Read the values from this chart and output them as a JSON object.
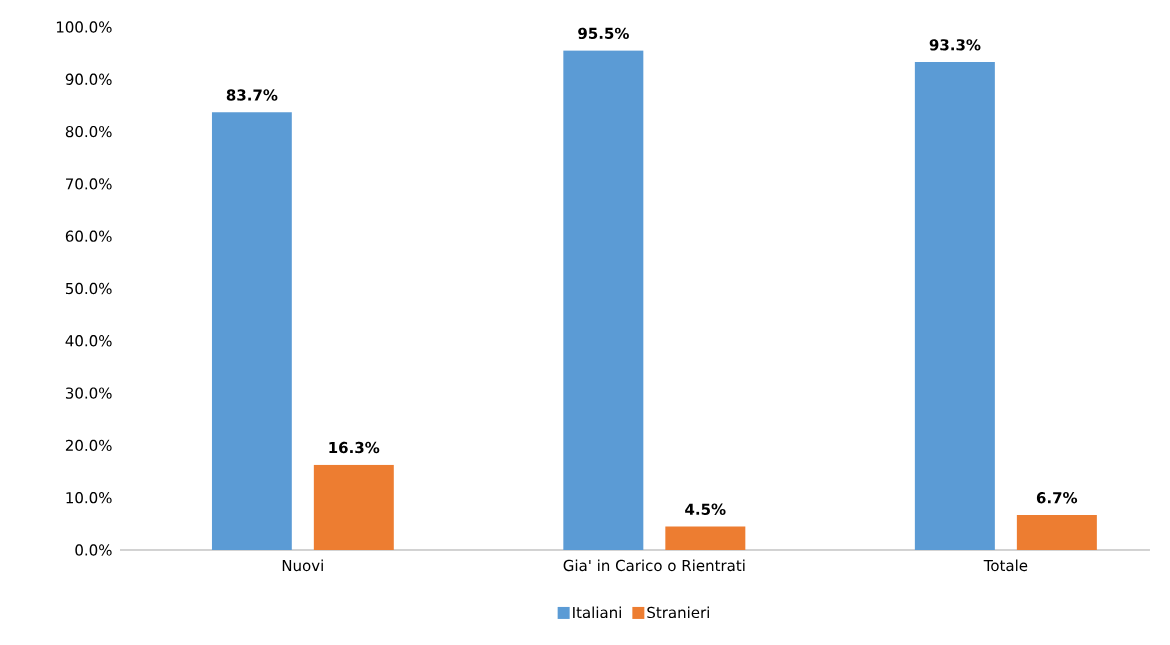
{
  "chart_data": {
    "type": "bar",
    "categories": [
      "Nuovi",
      "Gia' in Carico o Rientrati",
      "Totale"
    ],
    "series": [
      {
        "name": "Italiani",
        "color": "#5b9bd5",
        "values": [
          83.7,
          95.5,
          93.3
        ],
        "value_labels": [
          "83.7%",
          "95.5%",
          "93.3%"
        ]
      },
      {
        "name": "Stranieri",
        "color": "#ed7d31",
        "values": [
          16.3,
          4.5,
          6.7
        ],
        "value_labels": [
          "16.3%",
          "4.5%",
          "6.7%"
        ]
      }
    ],
    "ylim": [
      0,
      100
    ],
    "yticks": [
      {
        "value": 0,
        "label": "0.0%"
      },
      {
        "value": 10,
        "label": "10.0%"
      },
      {
        "value": 20,
        "label": "20.0%"
      },
      {
        "value": 30,
        "label": "30.0%"
      },
      {
        "value": 40,
        "label": "40.0%"
      },
      {
        "value": 50,
        "label": "50.0%"
      },
      {
        "value": 60,
        "label": "60.0%"
      },
      {
        "value": 70,
        "label": "70.0%"
      },
      {
        "value": 80,
        "label": "80.0%"
      },
      {
        "value": 90,
        "label": "90.0%"
      },
      {
        "value": 100,
        "label": "100.0%"
      }
    ],
    "legend": "bottom",
    "grid": false
  }
}
